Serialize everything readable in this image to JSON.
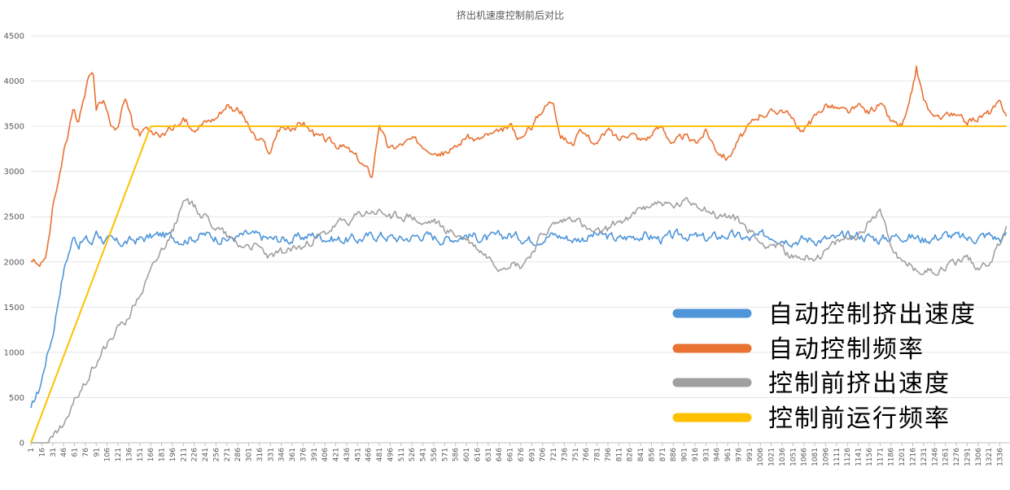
{
  "chart_data": {
    "type": "line",
    "title": "挤出机速度控制前后对比",
    "xlabel": "",
    "ylabel": "",
    "ylim": [
      0,
      4500
    ],
    "yticks": [
      0,
      500,
      1000,
      1500,
      2000,
      2500,
      3000,
      3500,
      4000,
      4500
    ],
    "xlim": [
      1,
      1350
    ],
    "xticks_start": 1,
    "xticks_step": 15,
    "xticks_end": 1336,
    "grid": "horizontal",
    "legend_position": "bottom-right",
    "series": [
      {
        "name": "自动控制挤出速度",
        "color": "#4e95d9",
        "x": [
          1,
          6,
          11,
          16,
          21,
          26,
          31,
          36,
          41,
          46,
          51,
          56,
          61,
          66,
          76,
          86,
          91,
          101,
          121,
          151,
          181,
          211,
          241,
          271,
          301,
          331,
          361,
          391,
          421,
          451,
          481,
          511,
          541,
          571,
          601,
          631,
          661,
          691,
          721,
          751,
          781,
          811,
          841,
          871,
          901,
          931,
          961,
          991,
          1021,
          1051,
          1081,
          1111,
          1141,
          1171,
          1201,
          1231,
          1261,
          1291,
          1321,
          1336,
          1345
        ],
        "y": [
          350,
          480,
          560,
          700,
          900,
          1050,
          1200,
          1450,
          1700,
          1900,
          2050,
          2180,
          2300,
          2200,
          2250,
          2200,
          2350,
          2250,
          2200,
          2250,
          2300,
          2250,
          2300,
          2250,
          2300,
          2250,
          2250,
          2300,
          2250,
          2250,
          2300,
          2250,
          2300,
          2250,
          2300,
          2250,
          2300,
          2250,
          2300,
          2250,
          2300,
          2250,
          2300,
          2250,
          2300,
          2250,
          2300,
          2250,
          2300,
          2250,
          2250,
          2250,
          2300,
          2250,
          2300,
          2250,
          2300,
          2250,
          2300,
          2250,
          2300
        ],
        "noise": 90
      },
      {
        "name": "自动控制频率",
        "color": "#e97132",
        "x": [
          1,
          16,
          21,
          26,
          31,
          41,
          46,
          51,
          56,
          61,
          66,
          71,
          76,
          81,
          86,
          91,
          96,
          101,
          106,
          111,
          116,
          121,
          131,
          141,
          151,
          161,
          166,
          181,
          196,
          211,
          226,
          241,
          256,
          271,
          281,
          291,
          301,
          311,
          321,
          331,
          341,
          346,
          361,
          376,
          391,
          406,
          421,
          436,
          451,
          466,
          471,
          481,
          491,
          496,
          511,
          526,
          541,
          556,
          571,
          586,
          601,
          616,
          631,
          646,
          661,
          676,
          691,
          706,
          721,
          731,
          746,
          761,
          781,
          796,
          811,
          826,
          841,
          856,
          871,
          886,
          901,
          916,
          931,
          946,
          961,
          976,
          991,
          1006,
          1021,
          1036,
          1051,
          1066,
          1081,
          1096,
          1111,
          1126,
          1141,
          1156,
          1171,
          1186,
          1201,
          1211,
          1221,
          1231,
          1246,
          1261,
          1276,
          1291,
          1306,
          1321,
          1336,
          1345
        ],
        "y": [
          2000,
          2000,
          2030,
          2300,
          2600,
          3000,
          3250,
          3350,
          3600,
          3700,
          3500,
          3700,
          3850,
          4050,
          4150,
          3700,
          3750,
          3750,
          3700,
          3550,
          3500,
          3500,
          3800,
          3500,
          3400,
          3450,
          3400,
          3400,
          3500,
          3550,
          3500,
          3550,
          3600,
          3750,
          3700,
          3650,
          3500,
          3350,
          3300,
          3200,
          3450,
          3500,
          3450,
          3550,
          3400,
          3350,
          3300,
          3250,
          3150,
          3000,
          2950,
          3550,
          3300,
          3250,
          3300,
          3350,
          3300,
          3250,
          3200,
          3250,
          3400,
          3350,
          3400,
          3400,
          3500,
          3350,
          3500,
          3700,
          3800,
          3400,
          3300,
          3450,
          3300,
          3450,
          3350,
          3450,
          3350,
          3400,
          3500,
          3300,
          3400,
          3300,
          3450,
          3250,
          3150,
          3350,
          3500,
          3650,
          3650,
          3700,
          3550,
          3450,
          3600,
          3750,
          3700,
          3650,
          3700,
          3650,
          3750,
          3550,
          3500,
          3700,
          4150,
          3800,
          3550,
          3650,
          3600,
          3550,
          3600,
          3650,
          3750,
          3650
        ],
        "noise": 70
      },
      {
        "name": "控制前挤出速度",
        "color": "#a0a0a0",
        "x": [
          1,
          21,
          31,
          41,
          51,
          61,
          71,
          81,
          91,
          101,
          111,
          121,
          131,
          141,
          151,
          166,
          181,
          196,
          211,
          226,
          241,
          256,
          271,
          286,
          301,
          316,
          331,
          346,
          361,
          376,
          391,
          406,
          421,
          436,
          451,
          466,
          481,
          496,
          511,
          526,
          541,
          556,
          571,
          586,
          601,
          616,
          631,
          646,
          661,
          676,
          691,
          706,
          721,
          736,
          751,
          766,
          781,
          796,
          811,
          826,
          841,
          856,
          871,
          886,
          901,
          916,
          931,
          946,
          961,
          976,
          991,
          1006,
          1021,
          1036,
          1051,
          1066,
          1081,
          1096,
          1111,
          1126,
          1141,
          1156,
          1171,
          1186,
          1201,
          1216,
          1231,
          1246,
          1261,
          1276,
          1291,
          1306,
          1321,
          1336,
          1345
        ],
        "y": [
          0,
          0,
          50,
          150,
          250,
          450,
          600,
          750,
          900,
          1050,
          1150,
          1250,
          1350,
          1500,
          1650,
          1900,
          2150,
          2350,
          2650,
          2600,
          2500,
          2400,
          2300,
          2200,
          2200,
          2150,
          2050,
          2100,
          2150,
          2150,
          2250,
          2300,
          2400,
          2450,
          2500,
          2550,
          2550,
          2500,
          2500,
          2500,
          2400,
          2450,
          2350,
          2300,
          2250,
          2150,
          2050,
          1950,
          2000,
          1950,
          2100,
          2300,
          2400,
          2450,
          2500,
          2350,
          2300,
          2350,
          2450,
          2450,
          2600,
          2650,
          2650,
          2600,
          2650,
          2650,
          2600,
          2500,
          2500,
          2450,
          2350,
          2200,
          2200,
          2150,
          2050,
          2050,
          2050,
          2100,
          2200,
          2250,
          2300,
          2450,
          2600,
          2200,
          2000,
          1950,
          1900,
          1900,
          1950,
          2000,
          2050,
          1950,
          2000,
          2200,
          2400
        ],
        "noise": 80
      },
      {
        "name": "控制前运行频率",
        "color": "#ffc000",
        "x": [
          1,
          166,
          1345
        ],
        "y": [
          0,
          3500,
          3500
        ],
        "noise": 0
      }
    ]
  }
}
